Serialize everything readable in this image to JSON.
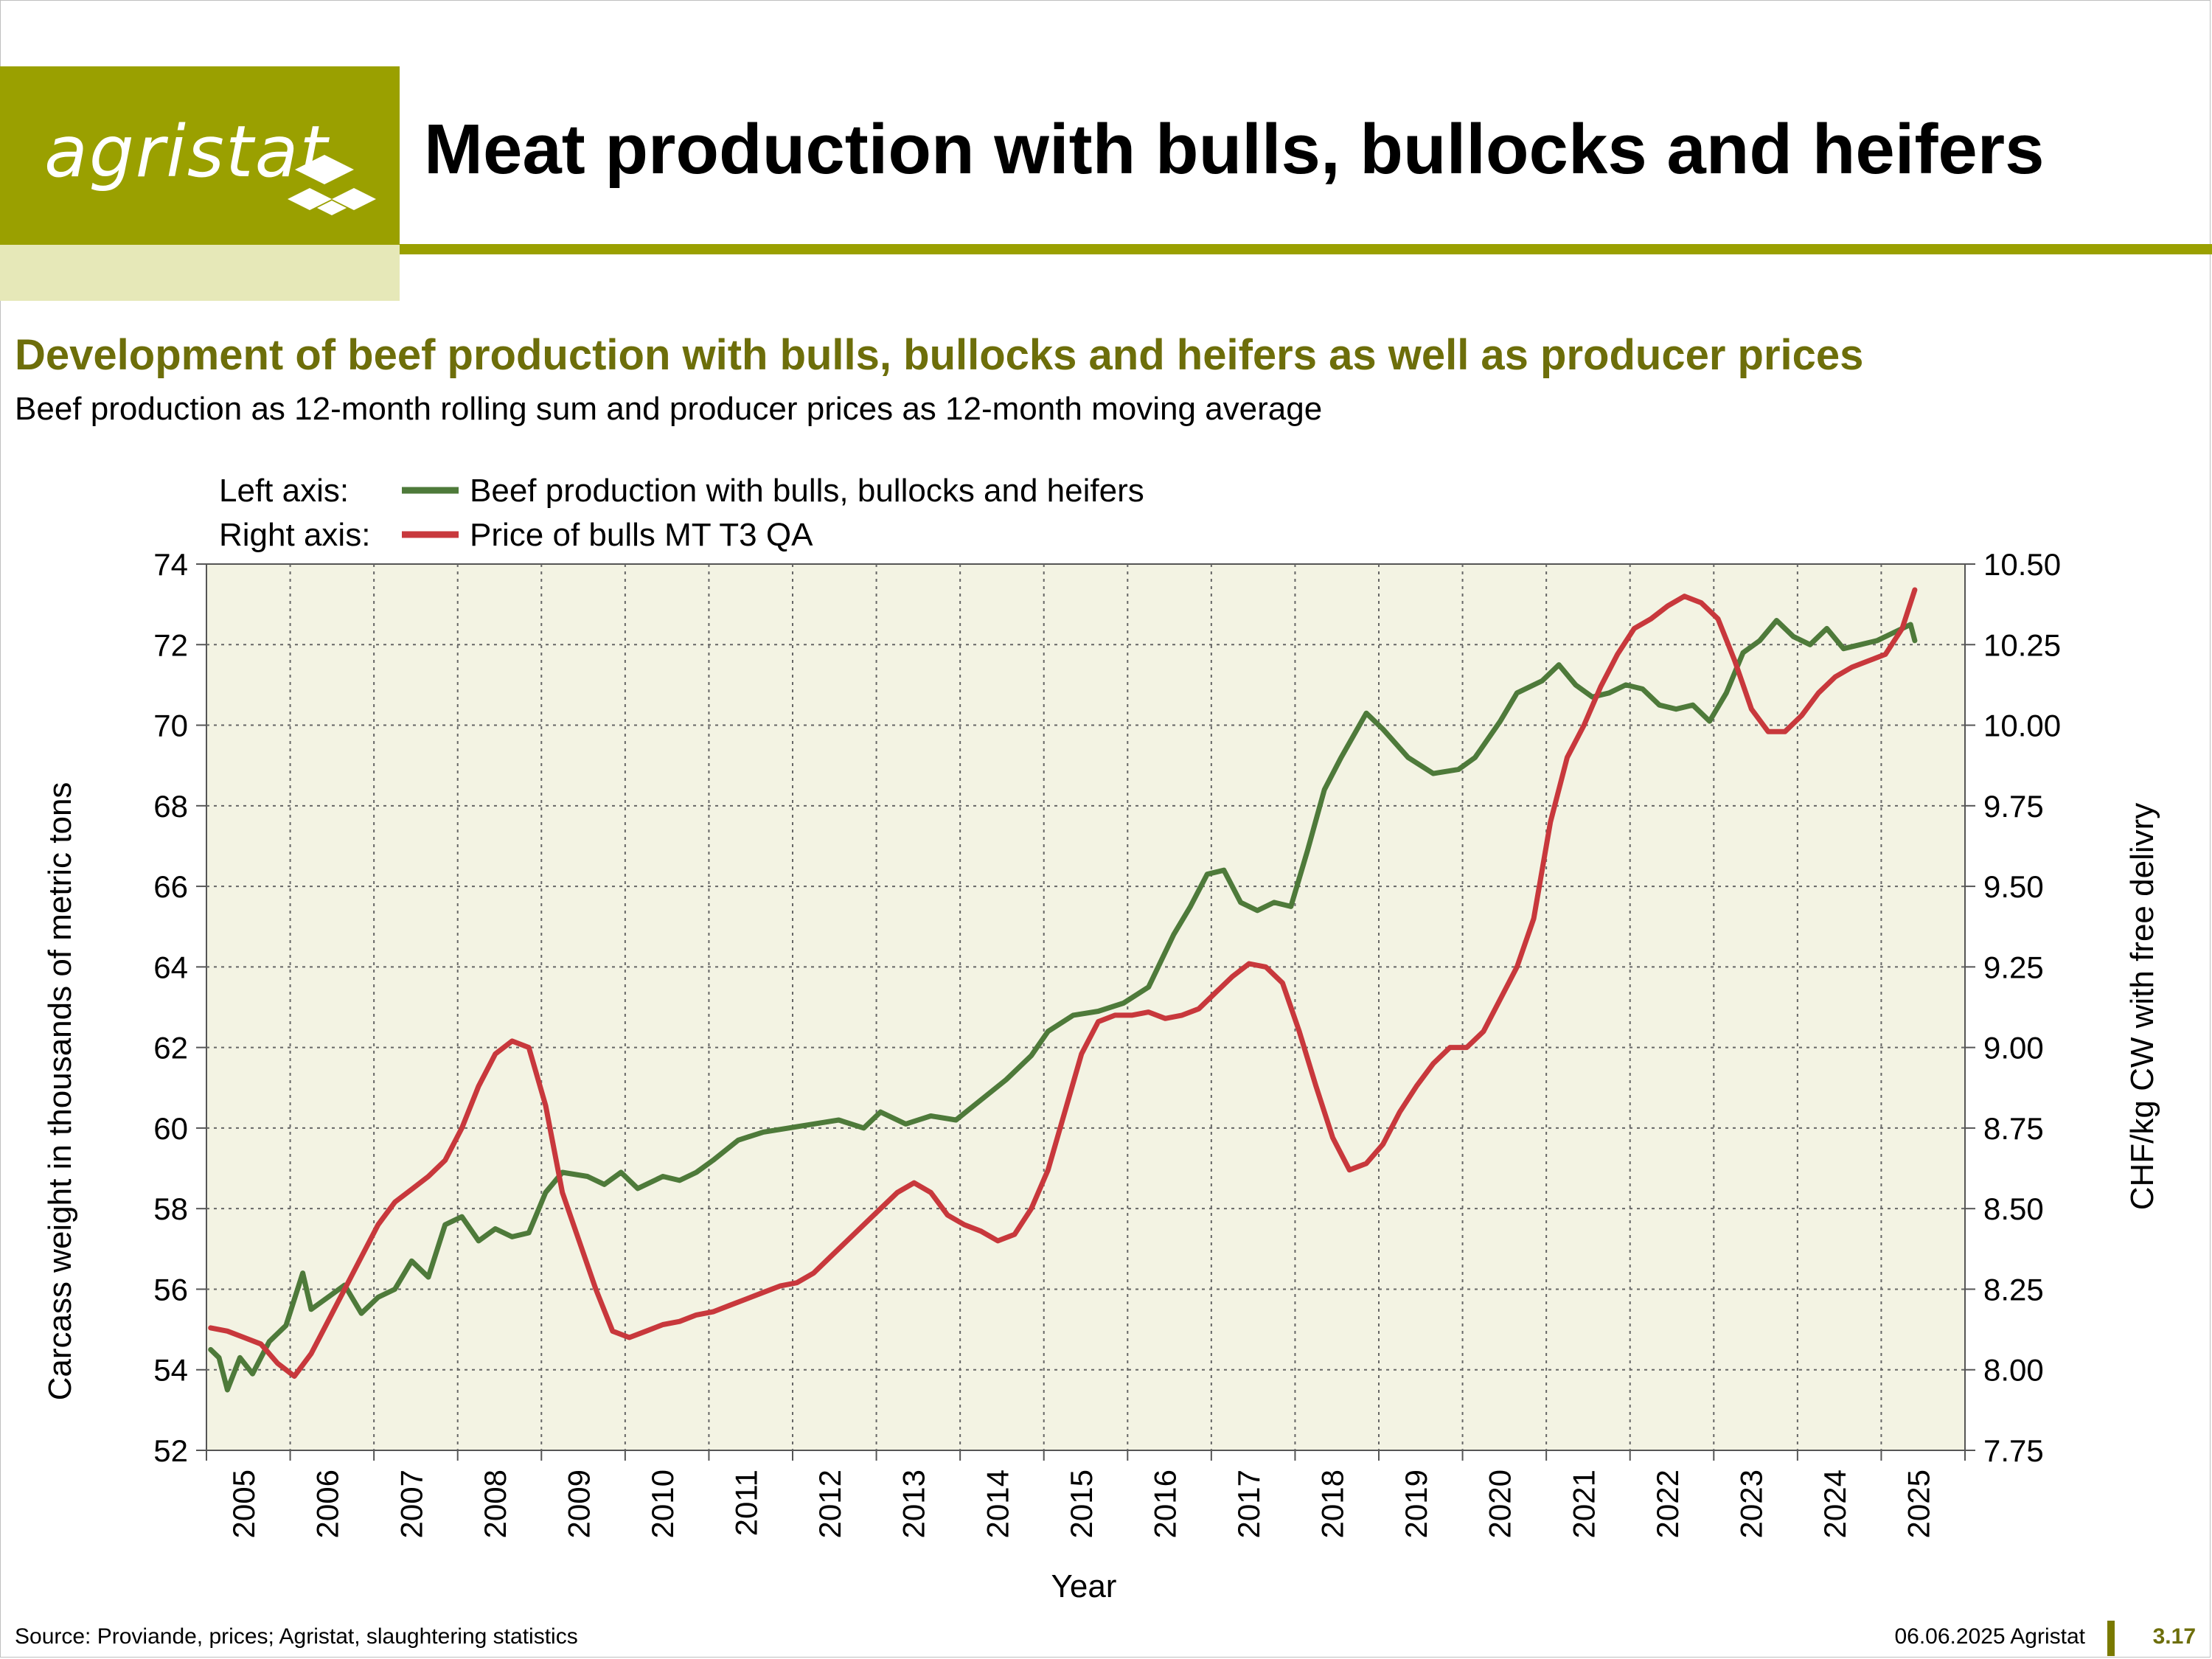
{
  "header": {
    "logo_text": "agristat",
    "title": "Meat production with bulls, bullocks and heifers"
  },
  "subtitle": "Development of beef production with bulls, bullocks and heifers as well as producer prices",
  "description": "Beef production as 12-month rolling sum and producer prices as 12-month moving average",
  "legend": {
    "left_label": "Left axis:",
    "right_label": "Right axis:"
  },
  "footer": {
    "source": "Source: Proviande, prices; Agristat, slaughtering statistics",
    "date": "06.06.2025 Agristat",
    "page": "3.17"
  },
  "colors": {
    "brand": "#9aa000",
    "subtitle": "#6d6e0a",
    "plot_bg": "#f3f3e3",
    "production": "#4e7a3a",
    "price": "#c8383c"
  },
  "chart_data": {
    "type": "line",
    "xlabel": "Year",
    "ylabel": "Carcass weight in thousands of metric tons",
    "y2label": "CHF/kg CW with free delivry",
    "categories": [
      "2005",
      "2006",
      "2007",
      "2008",
      "2009",
      "2010",
      "2011",
      "2012",
      "2013",
      "2014",
      "2015",
      "2016",
      "2017",
      "2018",
      "2019",
      "2020",
      "2021",
      "2022",
      "2023",
      "2024",
      "2025"
    ],
    "ylim": [
      52,
      74
    ],
    "yticks": [
      "52",
      "54",
      "56",
      "58",
      "60",
      "62",
      "64",
      "66",
      "68",
      "70",
      "72",
      "74"
    ],
    "y2lim": [
      7.75,
      10.5
    ],
    "y2ticks": [
      "7.75",
      "8.00",
      "8.25",
      "8.50",
      "8.75",
      "9.00",
      "9.25",
      "9.50",
      "9.75",
      "10.00",
      "10.25",
      "10.50"
    ],
    "grid": true,
    "legend_position": "top-left",
    "series": [
      {
        "name": "Beef production with bulls, bullocks and heifers",
        "axis": "left",
        "x": [
          2005.0,
          2005.1,
          2005.2,
          2005.35,
          2005.5,
          2005.7,
          2005.9,
          2006.1,
          2006.2,
          2006.4,
          2006.6,
          2006.8,
          2007.0,
          2007.2,
          2007.4,
          2007.6,
          2007.8,
          2008.0,
          2008.2,
          2008.4,
          2008.6,
          2008.8,
          2009.0,
          2009.2,
          2009.5,
          2009.7,
          2009.9,
          2010.1,
          2010.4,
          2010.6,
          2010.8,
          2011.0,
          2011.3,
          2011.6,
          2011.9,
          2012.2,
          2012.5,
          2012.8,
          2013.0,
          2013.3,
          2013.6,
          2013.9,
          2014.2,
          2014.5,
          2014.8,
          2015.0,
          2015.3,
          2015.6,
          2015.9,
          2016.2,
          2016.5,
          2016.7,
          2016.9,
          2017.1,
          2017.3,
          2017.5,
          2017.7,
          2017.9,
          2018.1,
          2018.3,
          2018.5,
          2018.8,
          2019.0,
          2019.3,
          2019.6,
          2019.9,
          2020.1,
          2020.4,
          2020.6,
          2020.9,
          2021.1,
          2021.3,
          2021.5,
          2021.7,
          2021.9,
          2022.1,
          2022.3,
          2022.5,
          2022.7,
          2022.9,
          2023.1,
          2023.3,
          2023.5,
          2023.7,
          2023.9,
          2024.1,
          2024.3,
          2024.5,
          2024.7,
          2024.9,
          2025.1,
          2025.3,
          2025.35
        ],
        "values": [
          54.5,
          54.3,
          53.5,
          54.3,
          53.9,
          54.7,
          55.1,
          56.4,
          55.5,
          55.8,
          56.1,
          55.4,
          55.8,
          56.0,
          56.7,
          56.3,
          57.6,
          57.8,
          57.2,
          57.5,
          57.3,
          57.4,
          58.4,
          58.9,
          58.8,
          58.6,
          58.9,
          58.5,
          58.8,
          58.7,
          58.9,
          59.2,
          59.7,
          59.9,
          60.0,
          60.1,
          60.2,
          60.0,
          60.4,
          60.1,
          60.3,
          60.2,
          60.7,
          61.2,
          61.8,
          62.4,
          62.8,
          62.9,
          63.1,
          63.5,
          64.8,
          65.5,
          66.3,
          66.4,
          65.6,
          65.4,
          65.6,
          65.5,
          66.9,
          68.4,
          69.2,
          70.3,
          69.9,
          69.2,
          68.8,
          68.9,
          69.2,
          70.1,
          70.8,
          71.1,
          71.5,
          71.0,
          70.7,
          70.8,
          71.0,
          70.9,
          70.5,
          70.4,
          70.5,
          70.1,
          70.8,
          71.8,
          72.1,
          72.6,
          72.2,
          72.0,
          72.4,
          71.9,
          72.0,
          72.1,
          72.3,
          72.5,
          72.1
        ]
      },
      {
        "name": "Price of bulls MT T3 QA",
        "axis": "right",
        "x": [
          2005.0,
          2005.2,
          2005.4,
          2005.6,
          2005.8,
          2006.0,
          2006.2,
          2006.4,
          2006.6,
          2006.8,
          2007.0,
          2007.2,
          2007.4,
          2007.6,
          2007.8,
          2008.0,
          2008.2,
          2008.4,
          2008.6,
          2008.8,
          2009.0,
          2009.2,
          2009.4,
          2009.6,
          2009.8,
          2010.0,
          2010.2,
          2010.4,
          2010.6,
          2010.8,
          2011.0,
          2011.2,
          2011.4,
          2011.6,
          2011.8,
          2012.0,
          2012.2,
          2012.4,
          2012.6,
          2012.8,
          2013.0,
          2013.2,
          2013.4,
          2013.6,
          2013.8,
          2014.0,
          2014.2,
          2014.4,
          2014.6,
          2014.8,
          2015.0,
          2015.2,
          2015.4,
          2015.6,
          2015.8,
          2016.0,
          2016.2,
          2016.4,
          2016.6,
          2016.8,
          2017.0,
          2017.2,
          2017.4,
          2017.6,
          2017.8,
          2018.0,
          2018.2,
          2018.4,
          2018.6,
          2018.8,
          2019.0,
          2019.2,
          2019.4,
          2019.6,
          2019.8,
          2020.0,
          2020.2,
          2020.4,
          2020.6,
          2020.8,
          2021.0,
          2021.2,
          2021.4,
          2021.6,
          2021.8,
          2022.0,
          2022.2,
          2022.4,
          2022.6,
          2022.8,
          2023.0,
          2023.2,
          2023.4,
          2023.6,
          2023.8,
          2024.0,
          2024.2,
          2024.4,
          2024.6,
          2024.8,
          2025.0,
          2025.2,
          2025.35
        ],
        "values": [
          8.13,
          8.12,
          8.1,
          8.08,
          8.02,
          7.98,
          8.05,
          8.15,
          8.25,
          8.35,
          8.45,
          8.52,
          8.56,
          8.6,
          8.65,
          8.75,
          8.88,
          8.98,
          9.02,
          9.0,
          8.82,
          8.55,
          8.4,
          8.25,
          8.12,
          8.1,
          8.12,
          8.14,
          8.15,
          8.17,
          8.18,
          8.2,
          8.22,
          8.24,
          8.26,
          8.27,
          8.3,
          8.35,
          8.4,
          8.45,
          8.5,
          8.55,
          8.58,
          8.55,
          8.48,
          8.45,
          8.43,
          8.4,
          8.42,
          8.5,
          8.62,
          8.8,
          8.98,
          9.08,
          9.1,
          9.1,
          9.11,
          9.09,
          9.1,
          9.12,
          9.17,
          9.22,
          9.26,
          9.25,
          9.2,
          9.05,
          8.88,
          8.72,
          8.62,
          8.64,
          8.7,
          8.8,
          8.88,
          8.95,
          9.0,
          9.0,
          9.05,
          9.15,
          9.25,
          9.4,
          9.7,
          9.9,
          10.0,
          10.12,
          10.22,
          10.3,
          10.33,
          10.37,
          10.4,
          10.38,
          10.33,
          10.2,
          10.05,
          9.98,
          9.98,
          10.03,
          10.1,
          10.15,
          10.18,
          10.2,
          10.22,
          10.3,
          10.42
        ]
      }
    ]
  }
}
